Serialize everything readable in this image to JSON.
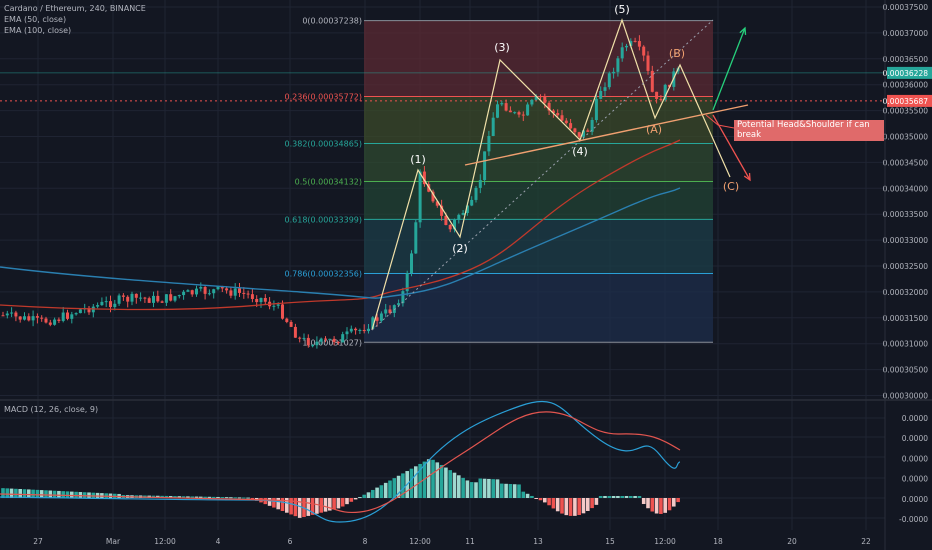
{
  "legend": {
    "symbol": "Cardano / Ethereum, 240, BINANCE",
    "ema50": "EMA (50, close)",
    "ema100": "EMA (100, close)"
  },
  "macd_legend": "MACD (12, 26, close, 9)",
  "annotation": "Potential Head&Shoulder if can break",
  "colors": {
    "background": "#131722",
    "up": "#26a69a",
    "down": "#ef5350",
    "ema50": "#c0392b",
    "ema100": "#2a7fb0",
    "elliott": "#f0e0a8",
    "trendline": "#f0a070",
    "macd_line": "#2a9fd6",
    "signal_line": "#e2554f"
  },
  "chart_data": [
    {
      "type": "candlestick",
      "title": "Cardano / Ethereum, 240, BINANCE",
      "y_axis_labels": [
        "0.00037500",
        "0.00037000",
        "0.00036500",
        "0.00036000",
        "0.00035500",
        "0.00035000",
        "0.00034500",
        "0.00034000",
        "0.00033500",
        "0.00033000",
        "0.00032500",
        "0.00032000",
        "0.00031500",
        "0.00031000",
        "0.00030500",
        "0.00030000"
      ],
      "y_range": [
        0.000296,
        0.000377
      ],
      "x_axis_labels": [
        "27",
        "Mar",
        "12:00",
        "4",
        "6",
        "8",
        "12:00",
        "11",
        "13",
        "15",
        "12:00",
        "18",
        "20",
        "22"
      ],
      "price_labels": [
        {
          "text": "0.00036228",
          "bg": "#26a69a",
          "value": 0.00036228
        },
        {
          "text": "0.00035687",
          "bg": "#ef5350",
          "value": 0.00035687
        }
      ],
      "fibonacci": [
        {
          "label": "0(0.00037238)",
          "value": 0.00037238
        },
        {
          "label": "0.236(0.00035772)",
          "value": 0.00035772
        },
        {
          "label": "0.382(0.00034865)",
          "value": 0.00034865
        },
        {
          "label": "0.5(0.00034132)",
          "value": 0.00034132
        },
        {
          "label": "0.618(0.00033399)",
          "value": 0.00033399
        },
        {
          "label": "0.786(0.00032356)",
          "value": 0.00032356
        },
        {
          "label": "1(0.00031027)",
          "value": 0.00031027
        }
      ],
      "elliott_wave_labels": [
        "(1)",
        "(2)",
        "(3)",
        "(4)",
        "(5)",
        "(A)",
        "(B)",
        "(C)"
      ],
      "series": [
        {
          "name": "EMA (50, close)"
        },
        {
          "name": "EMA (100, close)"
        }
      ]
    },
    {
      "type": "bar",
      "title": "MACD (12, 26, close, 9)",
      "y_axis_labels": [
        "0.0000",
        "0.0000",
        "0.0000",
        "0.0000",
        "0.0000",
        "-0.0000"
      ],
      "series": [
        {
          "name": "MACD"
        },
        {
          "name": "Signal"
        },
        {
          "name": "Histogram"
        }
      ]
    }
  ]
}
